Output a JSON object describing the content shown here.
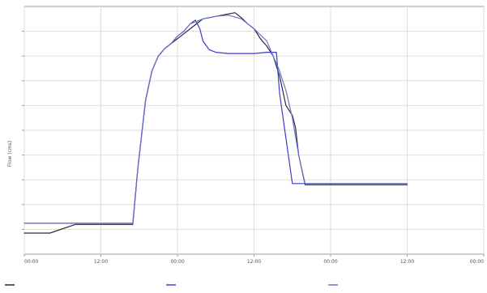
{
  "chart_data": {
    "type": "line",
    "ylabel": "Flow (cms)",
    "xlim": [
      0,
      72
    ],
    "ylim": [
      0,
      10
    ],
    "grid": true,
    "legend_position": "bottom",
    "caption": "",
    "x_ticks": [
      {
        "x": 0,
        "label": "00:00",
        "sub": ""
      },
      {
        "x": 12,
        "label": "12:00",
        "sub": ""
      },
      {
        "x": 24,
        "label": "00:00",
        "sub": ""
      },
      {
        "x": 36,
        "label": "12:00",
        "sub": ""
      },
      {
        "x": 48,
        "label": "00:00",
        "sub": ""
      },
      {
        "x": 60,
        "label": "12:00",
        "sub": ""
      },
      {
        "x": 72,
        "label": "00:00",
        "sub": ""
      }
    ],
    "y_ticks": [
      {
        "y": 1,
        "label": ""
      },
      {
        "y": 2,
        "label": ""
      },
      {
        "y": 3,
        "label": ""
      },
      {
        "y": 4,
        "label": ""
      },
      {
        "y": 5,
        "label": ""
      },
      {
        "y": 6,
        "label": ""
      },
      {
        "y": 7,
        "label": ""
      },
      {
        "y": 8,
        "label": ""
      },
      {
        "y": 9,
        "label": ""
      }
    ],
    "series": [
      {
        "name": "",
        "color": "#2b2b3a",
        "x": [
          0,
          4,
          8,
          16,
          17,
          17.8,
          19,
          20,
          21,
          22,
          23,
          24,
          26,
          27,
          28,
          29,
          30,
          31,
          32,
          33,
          34,
          35,
          36,
          37,
          38,
          39,
          40,
          41,
          42,
          42.5,
          43,
          44,
          60
        ],
        "y": [
          0.85,
          0.85,
          1.2,
          1.2,
          1.2,
          3.5,
          6.2,
          7.4,
          8.0,
          8.3,
          8.5,
          8.7,
          9.1,
          9.3,
          9.5,
          9.55,
          9.6,
          9.65,
          9.7,
          9.75,
          9.55,
          9.3,
          9.1,
          8.7,
          8.4,
          8.0,
          7.2,
          6.0,
          5.6,
          5.1,
          4.0,
          2.8,
          2.8
        ]
      },
      {
        "name": "",
        "color": "#3a3ad0",
        "x": [
          0,
          16,
          17,
          17.8,
          19,
          20,
          21,
          22,
          23,
          24,
          25,
          26,
          26.8,
          27.5,
          28,
          29,
          30,
          32,
          34,
          36,
          38,
          39.5,
          40,
          42,
          43.5,
          60
        ],
        "y": [
          1.25,
          1.25,
          1.25,
          3.5,
          6.2,
          7.4,
          8.0,
          8.3,
          8.5,
          8.8,
          9.0,
          9.3,
          9.45,
          9.1,
          8.6,
          8.25,
          8.15,
          8.1,
          8.1,
          8.1,
          8.15,
          8.15,
          6.5,
          2.85,
          2.85,
          2.85
        ]
      },
      {
        "name": "",
        "color": "#6a72c8",
        "x": [
          0,
          16,
          17,
          17.8,
          19,
          20,
          21,
          22,
          23,
          24,
          25,
          26,
          27,
          28,
          30,
          32,
          34,
          36,
          38,
          40,
          41,
          42,
          43,
          44,
          60
        ],
        "y": [
          1.25,
          1.25,
          1.25,
          3.5,
          6.2,
          7.4,
          8.0,
          8.3,
          8.5,
          8.8,
          9.0,
          9.3,
          9.4,
          9.5,
          9.6,
          9.65,
          9.5,
          9.1,
          8.6,
          7.4,
          6.6,
          5.5,
          4.0,
          2.85,
          2.85
        ]
      }
    ]
  }
}
